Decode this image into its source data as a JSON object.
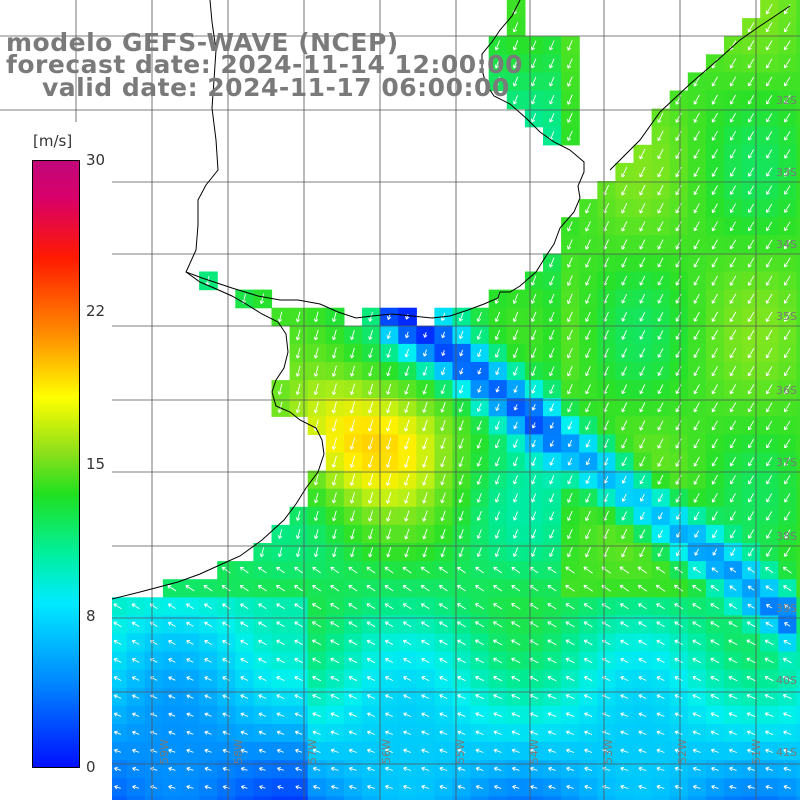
{
  "title": {
    "line1": "modelo GEFS-WAVE (NCEP)",
    "line2": "forecast date: 2024-11-14 12:00:00",
    "line3": "valid date: 2024-11-17 06:00:00"
  },
  "colorbar": {
    "unit": "[m/s]",
    "ticks": [
      "30",
      "22",
      "15",
      "8",
      "0"
    ],
    "colors": [
      "#0010ff",
      "#0088ff",
      "#00eaff",
      "#20e020",
      "#ffff00",
      "#ff9000",
      "#ff1a00",
      "#c0087a"
    ]
  },
  "lat_labels": [
    "32S",
    "33S",
    "34S",
    "35S",
    "36S",
    "37S",
    "38S",
    "39S",
    "40S",
    "41S"
  ],
  "lon_labels": [
    "60W",
    "59W",
    "58W",
    "57W",
    "56W",
    "55W",
    "54W",
    "53W",
    "52W",
    "51W"
  ],
  "colors": {
    "land": "#ffffff",
    "coast": "#000000",
    "grid": "#555555",
    "label": "#7a7a7a"
  }
}
